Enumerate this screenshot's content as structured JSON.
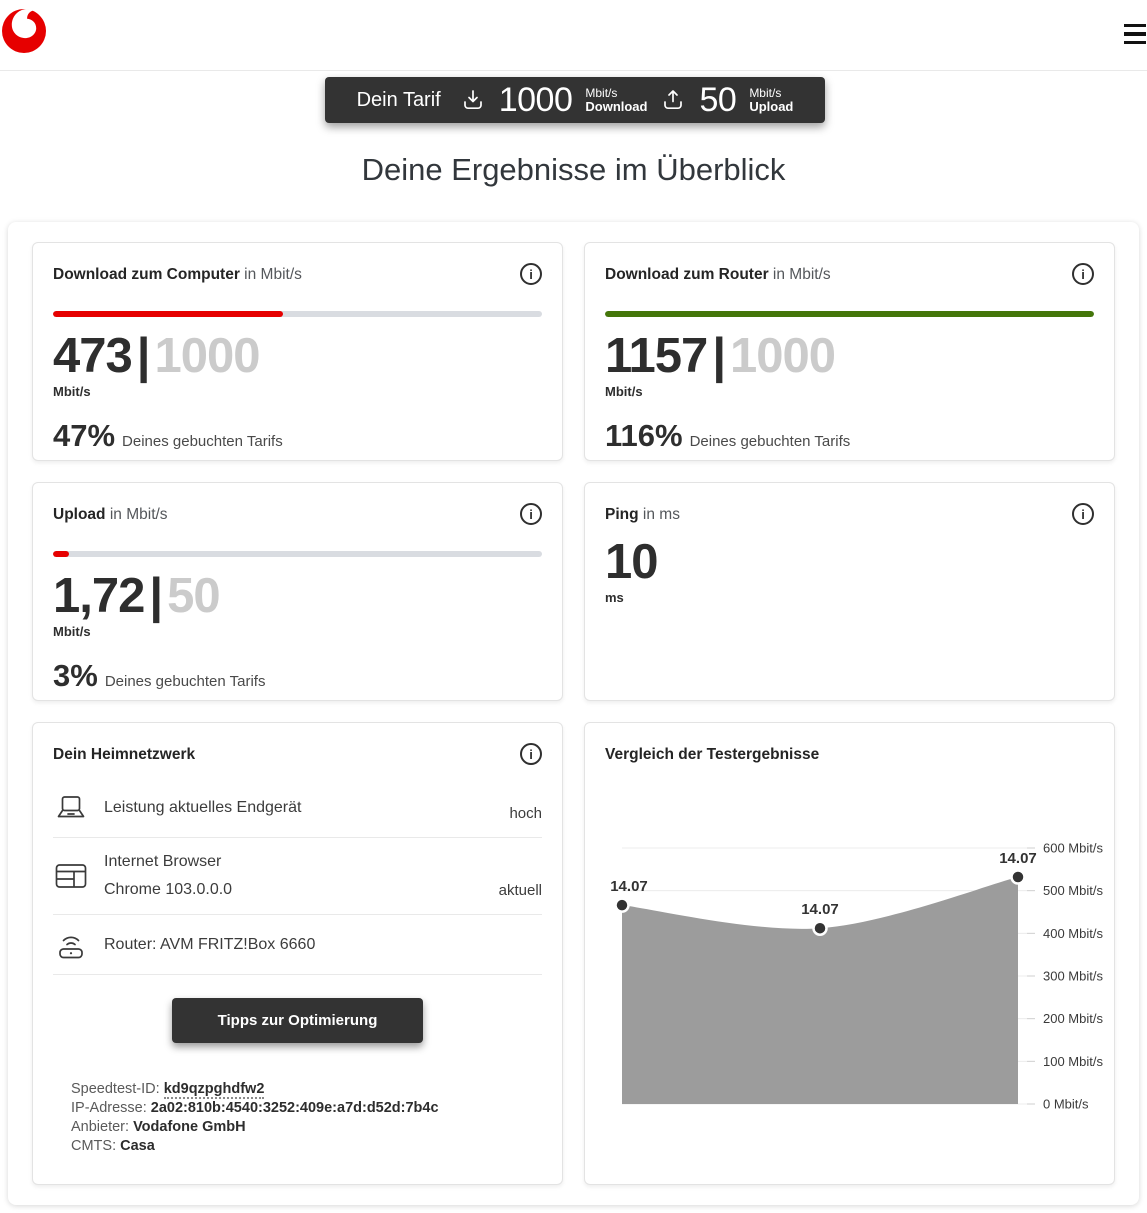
{
  "header": {
    "brand": "Vodafone"
  },
  "icons": {
    "info": "i"
  },
  "tarif_bar": {
    "label": "Dein Tarif",
    "download": {
      "value": "1000",
      "unit": "Mbit/s",
      "name": "Download"
    },
    "upload": {
      "value": "50",
      "unit": "Mbit/s",
      "name": "Upload"
    }
  },
  "page_title": "Deine Ergebnisse im Überblick",
  "metric_cards": [
    {
      "title": "Download zum Computer",
      "title_suffix": "in Mbit/s",
      "value": "473",
      "separator": "|",
      "max": "1000",
      "unit": "Mbit/s",
      "percent": "47%",
      "percent_suffix": "Deines gebuchten Tarifs",
      "progress_percent": 47,
      "bar_color": "#e60000"
    },
    {
      "title": "Download zum Router",
      "title_suffix": "in Mbit/s",
      "value": "1157",
      "separator": "|",
      "max": "1000",
      "unit": "Mbit/s",
      "percent": "116%",
      "percent_suffix": "Deines gebuchten Tarifs",
      "progress_percent": 100,
      "bar_color": "#44760a"
    },
    {
      "title": "Upload",
      "title_suffix": "in Mbit/s",
      "value": "1,72",
      "separator": "|",
      "max": "50",
      "unit": "Mbit/s",
      "percent": "3%",
      "percent_suffix": "Deines gebuchten Tarifs",
      "progress_percent": 3.3,
      "bar_color": "#e60000"
    },
    {
      "title": "Ping",
      "title_suffix": "in ms",
      "value": "10",
      "unit": "ms"
    }
  ],
  "home_network": {
    "title": "Dein Heimnetzwerk",
    "rows": [
      {
        "icon": "laptop-icon",
        "label": "Leistung aktuelles Endgerät",
        "status": "hoch"
      },
      {
        "icon": "browser-icon",
        "label": "Internet Browser",
        "sublabel": "Chrome 103.0.0.0",
        "status": "aktuell"
      },
      {
        "icon": "router-icon",
        "label": "Router: AVM FRITZ!Box 6660",
        "status": ""
      }
    ],
    "button_label": "Tipps zur Optimierung",
    "meta": [
      {
        "label": "Speedtest-ID:",
        "value": "kd9qzpghdfw2"
      },
      {
        "label": "IP-Adresse:",
        "value": "2a02:810b:4540:3252:409e:a7d:d52d:7b4c"
      },
      {
        "label": "Anbieter:",
        "value": "Vodafone GmbH"
      },
      {
        "label": "CMTS:",
        "value": "Casa"
      }
    ]
  },
  "chart_card": {
    "title": "Vergleich der Testergebnisse"
  },
  "chart_data": {
    "type": "area",
    "title": "Vergleich der Testergebnisse",
    "x_labels": [
      "14.07",
      "14.07",
      "14.07"
    ],
    "values": [
      466,
      412,
      532
    ],
    "unit": "Mbit/s",
    "y_ticks": [
      0,
      100,
      200,
      300,
      400,
      500,
      600
    ],
    "ylim": [
      0,
      600
    ],
    "grid": true,
    "legend": false,
    "area_color": "#9c9c9c",
    "point_color": "#333333",
    "ylabel_position": "right"
  },
  "colors": {
    "brand_red": "#e60000",
    "success_green": "#44760a",
    "dark": "#333333"
  }
}
